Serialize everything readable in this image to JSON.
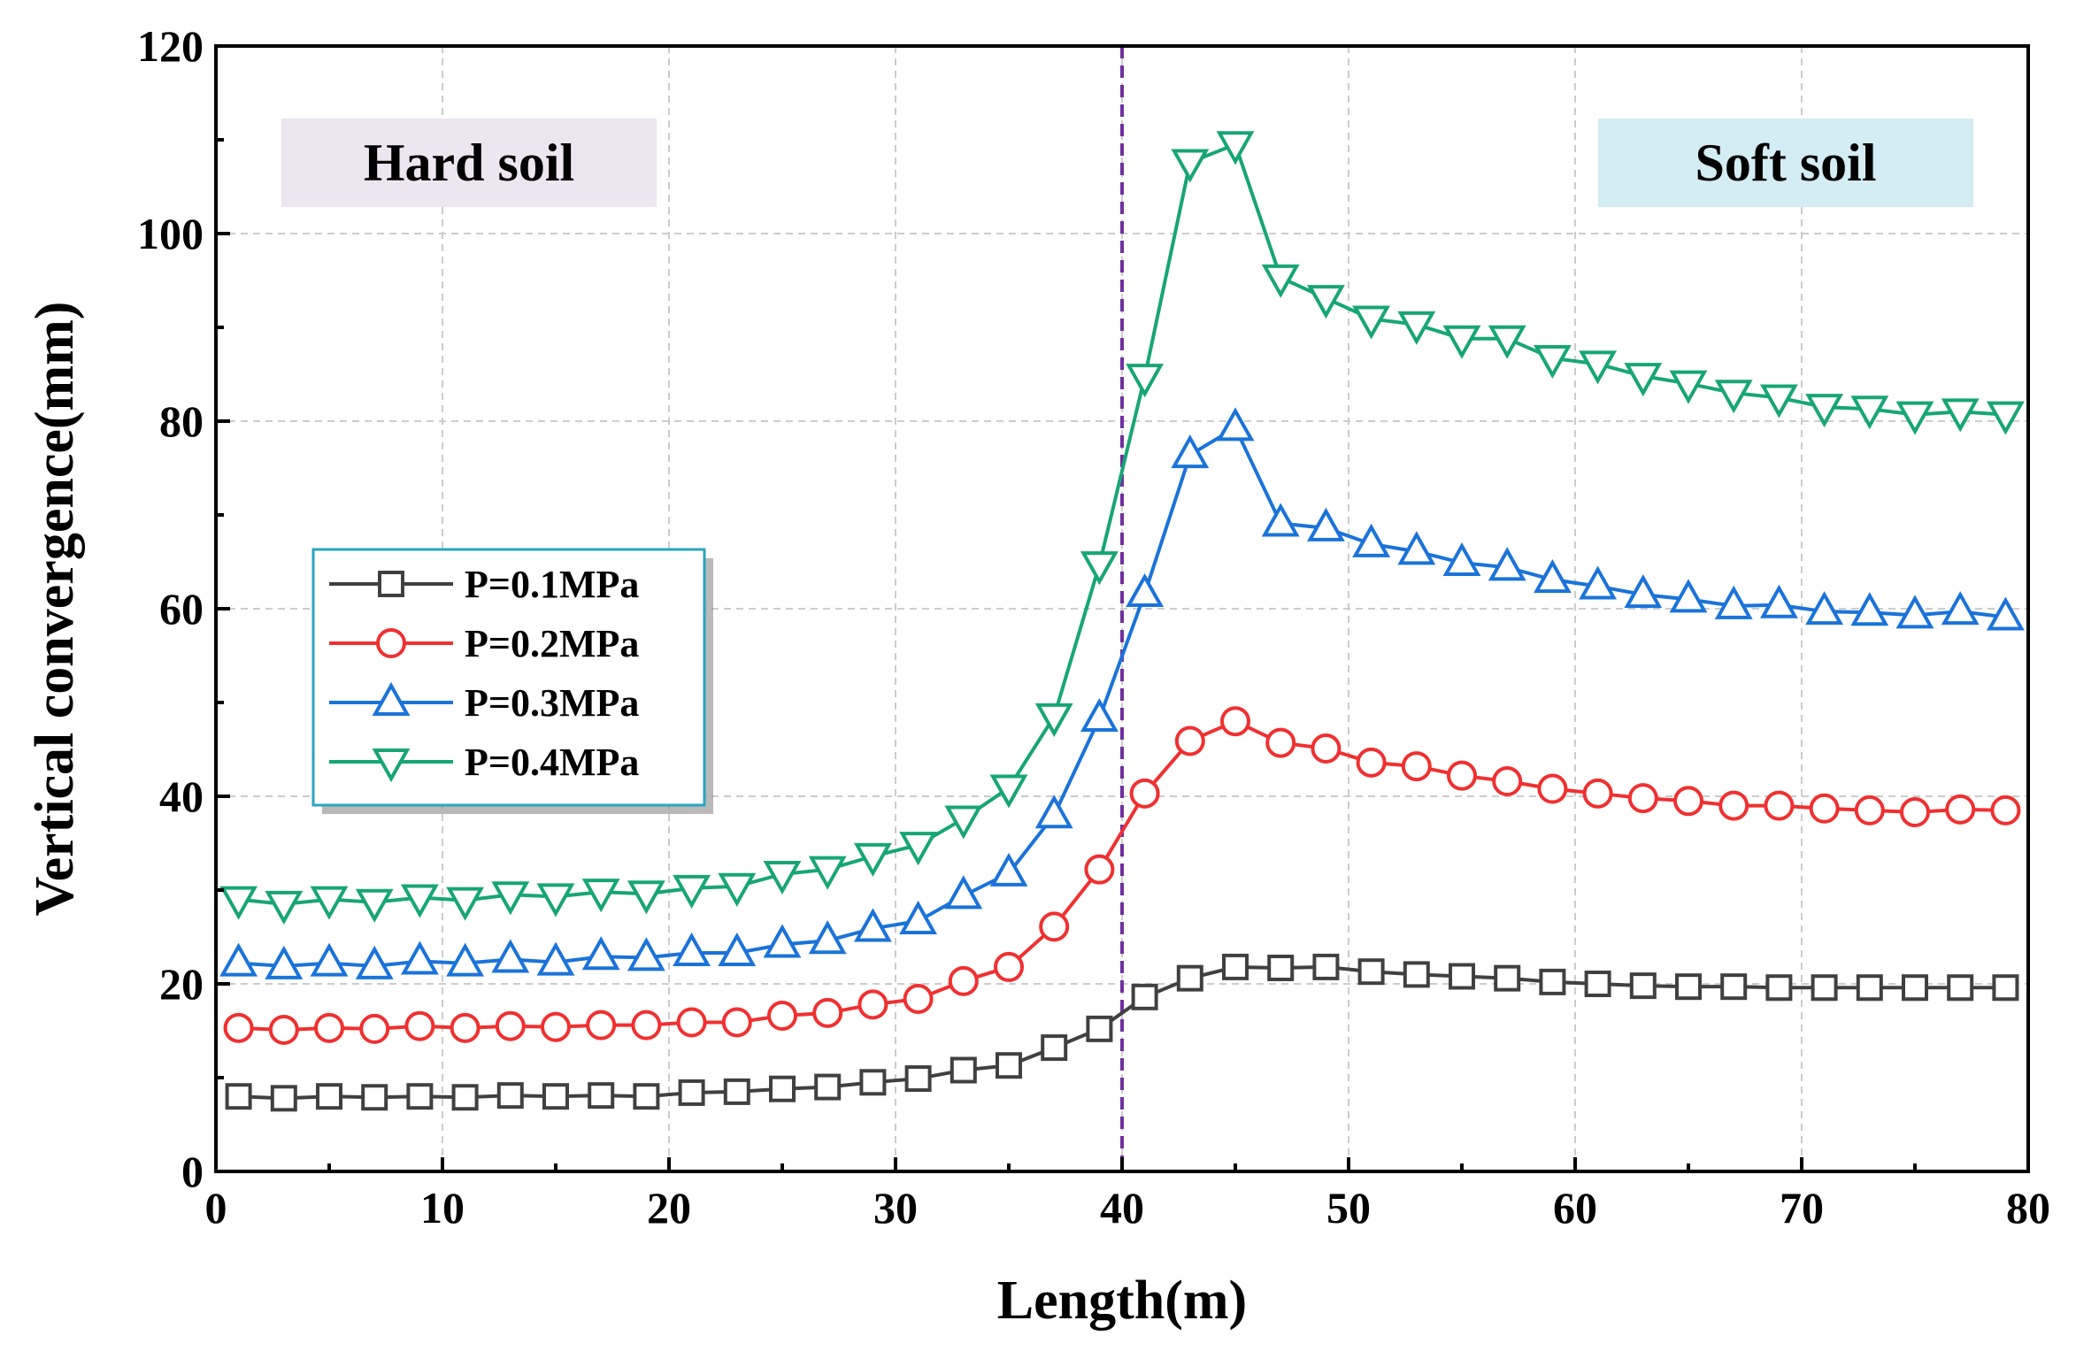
{
  "chart_data": {
    "type": "line",
    "title": "",
    "xlabel": "Length(m)",
    "ylabel": "Vertical convergence(mm)",
    "xlim": [
      0,
      80
    ],
    "ylim": [
      0,
      120
    ],
    "xticks": [
      0,
      10,
      20,
      30,
      40,
      50,
      60,
      70,
      80
    ],
    "yticks": [
      0,
      20,
      40,
      60,
      80,
      100,
      120
    ],
    "grid": true,
    "legend_position": "middle-left",
    "divider": {
      "x": 40,
      "color": "#7030a0",
      "style": "dashed"
    },
    "annotations": [
      {
        "text": "Hard soil",
        "bg": "#ece6f0"
      },
      {
        "text": "Soft soil",
        "bg": "#d4ecf3"
      }
    ],
    "x": [
      1,
      3,
      5,
      7,
      9,
      11,
      13,
      15,
      17,
      19,
      21,
      23,
      25,
      27,
      29,
      31,
      33,
      35,
      37,
      39,
      41,
      43,
      45,
      47,
      49,
      51,
      53,
      55,
      57,
      59,
      61,
      63,
      65,
      67,
      69,
      71,
      73,
      75,
      77,
      79
    ],
    "series": [
      {
        "name": "P=0.1MPa",
        "color": "#404040",
        "marker": "square",
        "values": [
          8.0,
          7.8,
          8.0,
          7.9,
          8.0,
          7.9,
          8.1,
          8.0,
          8.1,
          8.0,
          8.4,
          8.5,
          8.8,
          9.0,
          9.5,
          9.9,
          10.8,
          11.3,
          13.2,
          15.2,
          18.6,
          20.6,
          21.8,
          21.7,
          21.8,
          21.3,
          21.0,
          20.8,
          20.6,
          20.2,
          20.0,
          19.8,
          19.7,
          19.7,
          19.6,
          19.6,
          19.6,
          19.6,
          19.6,
          19.6
        ]
      },
      {
        "name": "P=0.2MPa",
        "color": "#f03030",
        "marker": "circle",
        "values": [
          15.3,
          15.1,
          15.3,
          15.2,
          15.5,
          15.3,
          15.5,
          15.4,
          15.6,
          15.6,
          15.9,
          15.9,
          16.6,
          16.9,
          17.8,
          18.4,
          20.3,
          21.8,
          26.1,
          32.2,
          40.3,
          45.9,
          48.0,
          45.7,
          45.1,
          43.6,
          43.2,
          42.2,
          41.6,
          40.8,
          40.3,
          39.8,
          39.5,
          39.0,
          39.0,
          38.7,
          38.5,
          38.3,
          38.6,
          38.5
        ]
      },
      {
        "name": "P=0.3MPa",
        "color": "#1a73d9",
        "marker": "triangle-up",
        "values": [
          22.2,
          21.9,
          22.2,
          21.9,
          22.4,
          22.2,
          22.6,
          22.3,
          22.9,
          22.8,
          23.3,
          23.3,
          24.2,
          24.6,
          25.9,
          26.7,
          29.4,
          31.8,
          38.0,
          48.3,
          61.6,
          76.4,
          79.3,
          69.1,
          68.6,
          66.9,
          66.1,
          64.9,
          64.4,
          63.1,
          62.4,
          61.5,
          61.0,
          60.3,
          60.4,
          59.7,
          59.6,
          59.3,
          59.7,
          59.1
        ]
      },
      {
        "name": "P=0.4MPa",
        "color": "#17a673",
        "marker": "triangle-down",
        "values": [
          29.0,
          28.5,
          29.0,
          28.7,
          29.2,
          28.9,
          29.5,
          29.3,
          29.8,
          29.6,
          30.2,
          30.4,
          31.7,
          32.2,
          33.6,
          34.8,
          37.6,
          40.9,
          48.5,
          64.7,
          84.7,
          107.6,
          109.5,
          95.3,
          93.1,
          90.9,
          90.3,
          88.8,
          88.8,
          86.7,
          86.1,
          84.8,
          84.0,
          83.0,
          82.5,
          81.5,
          81.3,
          80.7,
          81.0,
          80.7
        ]
      }
    ]
  }
}
